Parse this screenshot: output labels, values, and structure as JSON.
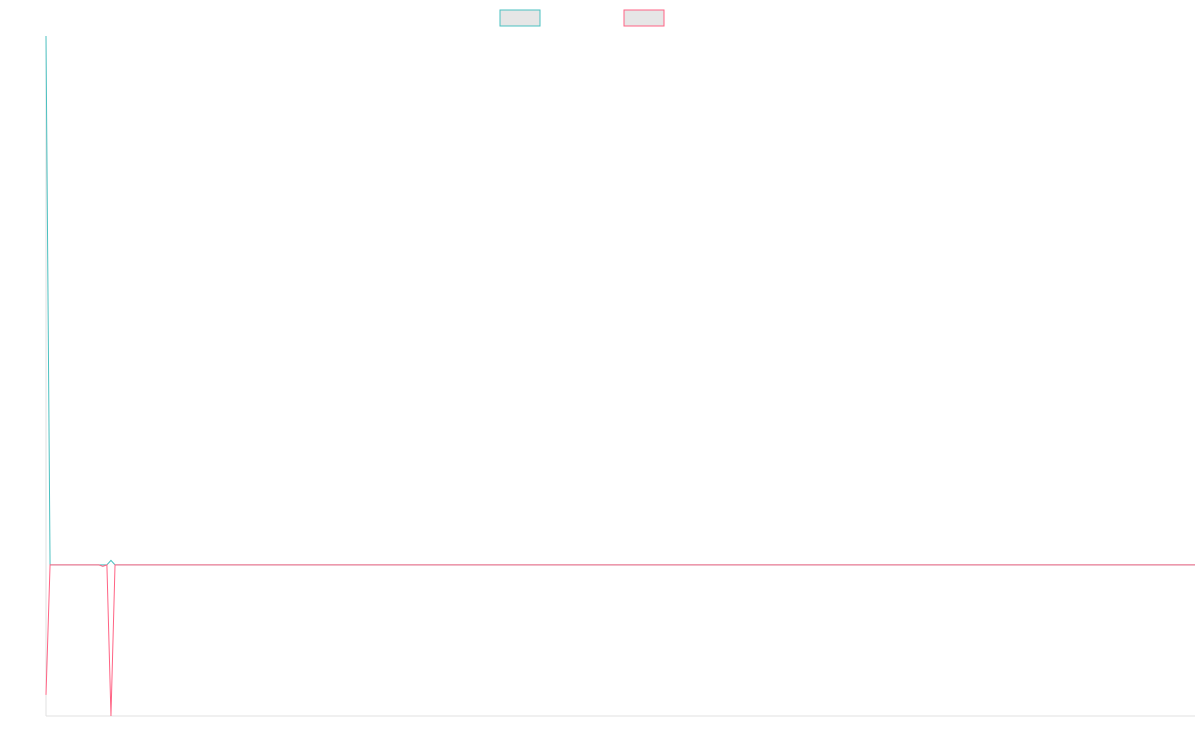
{
  "chart_data": {
    "type": "line",
    "x": [
      0,
      1,
      13,
      14,
      15,
      16,
      17,
      283
    ],
    "xlim": [
      0,
      283
    ],
    "ylim": [
      -1,
      3.5
    ],
    "series": [
      {
        "color": "#4bc0c0",
        "values": [
          3.5,
          0,
          0,
          0,
          0,
          0.03,
          0,
          0
        ]
      },
      {
        "color": "#ff6384",
        "values": [
          -0.86,
          0,
          0,
          -0.01,
          0,
          -1,
          0,
          0
        ]
      }
    ],
    "legend": "top"
  }
}
